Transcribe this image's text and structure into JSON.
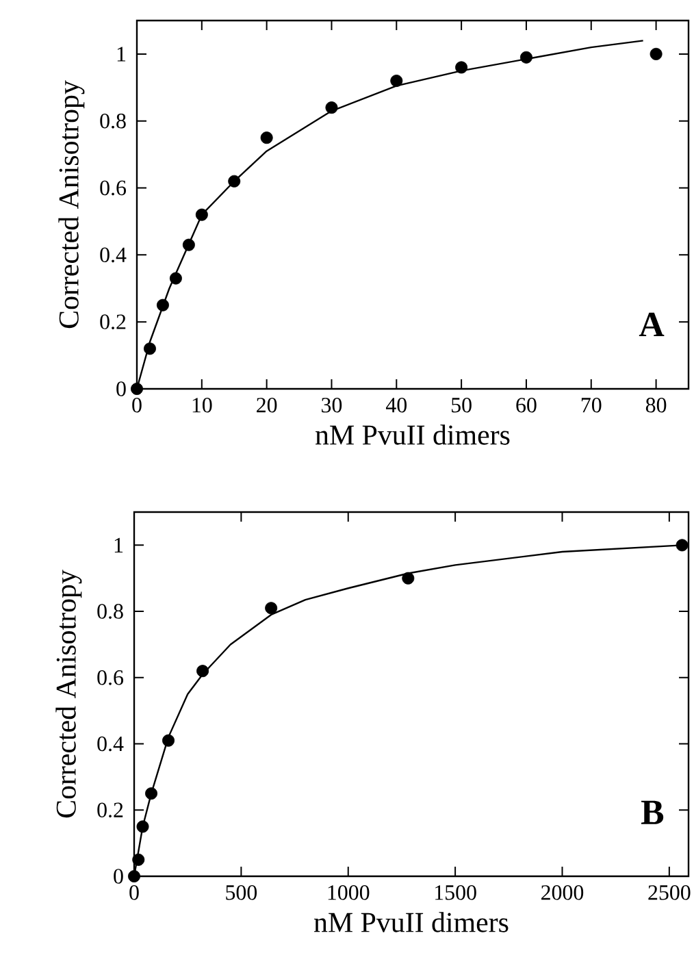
{
  "chart_data": [
    {
      "type": "scatter",
      "xlabel": "nM PvuII dimers",
      "ylabel": "Corrected Anisotropy",
      "annotations": [
        "**A**"
      ],
      "xlim": [
        0,
        85
      ],
      "ylim": [
        0,
        1.1
      ],
      "xticks": [
        0,
        10,
        20,
        30,
        40,
        50,
        60,
        70,
        80
      ],
      "yticks": [
        0,
        0.2,
        0.4,
        0.6,
        0.8,
        1
      ],
      "series": [
        {
          "marker": "circle",
          "color": "#000000",
          "x": [
            0,
            2,
            4,
            6,
            8,
            10,
            15,
            20,
            30,
            40,
            50,
            60,
            80
          ],
          "values": [
            0,
            0.12,
            0.25,
            0.33,
            0.43,
            0.52,
            0.62,
            0.75,
            0.84,
            0.92,
            0.96,
            0.99,
            1.0
          ]
        },
        {
          "type": "line",
          "marker": "none",
          "color": "#000000",
          "x": [
            0,
            2,
            5,
            10,
            15,
            20,
            30,
            40,
            50,
            60,
            70,
            78
          ],
          "values": [
            0,
            0.14,
            0.3,
            0.52,
            0.62,
            0.71,
            0.83,
            0.905,
            0.95,
            0.985,
            1.02,
            1.04
          ]
        }
      ]
    },
    {
      "type": "scatter",
      "xlabel": "nM PvuII dimers",
      "ylabel": "Corrected Anisotropy",
      "annotations": [
        "**B**"
      ],
      "xlim": [
        0,
        2590
      ],
      "ylim": [
        0,
        1.1
      ],
      "xticks": [
        0,
        500,
        1000,
        1500,
        2000,
        2500
      ],
      "yticks": [
        0,
        0.2,
        0.4,
        0.6,
        0.8,
        1
      ],
      "series": [
        {
          "marker": "circle",
          "color": "#000000",
          "x": [
            0,
            20,
            40,
            80,
            160,
            320,
            640,
            1280,
            2560
          ],
          "values": [
            0,
            0.05,
            0.15,
            0.25,
            0.41,
            0.62,
            0.81,
            0.9,
            1.0
          ]
        },
        {
          "type": "line",
          "marker": "none",
          "color": "#000000",
          "x": [
            0,
            40,
            80,
            160,
            250,
            320,
            450,
            640,
            800,
            1000,
            1280,
            1500,
            2000,
            2560
          ],
          "values": [
            0,
            0.15,
            0.25,
            0.42,
            0.55,
            0.61,
            0.7,
            0.79,
            0.835,
            0.87,
            0.915,
            0.94,
            0.98,
            1.0
          ]
        }
      ]
    }
  ]
}
